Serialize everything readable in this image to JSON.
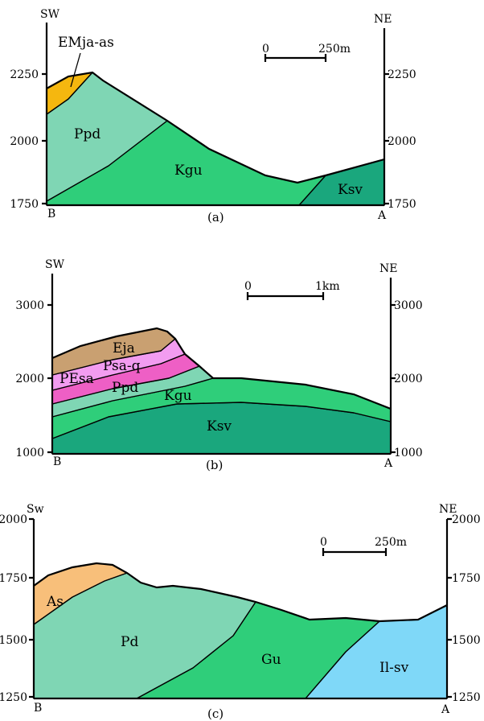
{
  "panels": [
    {
      "id": "a",
      "caption": "(a)",
      "left_dir": "SW",
      "right_dir": "NE",
      "left_end": "B",
      "right_end": "A",
      "left_ticks": [
        "2250",
        "2000",
        "1750"
      ],
      "right_ticks": [
        "2250",
        "2000",
        "1750"
      ],
      "scale": {
        "start": "0",
        "end": "250m"
      },
      "units": [
        {
          "name": "EMja-as",
          "color": "#f5b70f"
        },
        {
          "name": "Ppd",
          "color": "#7fd6b4"
        },
        {
          "name": "Kgu",
          "color": "#2fce7a"
        },
        {
          "name": "Ksv",
          "color": "#1aa77d"
        }
      ]
    },
    {
      "id": "b",
      "caption": "(b)",
      "left_dir": "SW",
      "right_dir": "NE",
      "left_end": "B",
      "right_end": "A",
      "left_ticks": [
        "3000",
        "2000",
        "1000"
      ],
      "right_ticks": [
        "3000",
        "2000",
        "1000"
      ],
      "scale": {
        "start": "0",
        "end": "1km"
      },
      "units": [
        {
          "name": "Eja",
          "color": "#c9a071"
        },
        {
          "name": "Psa-q",
          "color": "#f29cf0"
        },
        {
          "name": "PEsa",
          "color": "#ee5fc5"
        },
        {
          "name": "Ppd",
          "color": "#7fd6b4"
        },
        {
          "name": "Kgu",
          "color": "#2fce7a"
        },
        {
          "name": "Ksv",
          "color": "#1aa77d"
        }
      ]
    },
    {
      "id": "c",
      "caption": "(c)",
      "left_dir": "Sw",
      "right_dir": "NE",
      "left_end": "B",
      "right_end": "A",
      "left_ticks": [
        "2000",
        "1750",
        "1500",
        "1250"
      ],
      "right_ticks": [
        "2000",
        "1750",
        "1500",
        "1250"
      ],
      "scale": {
        "start": "0",
        "end": "250m"
      },
      "units": [
        {
          "name": "As",
          "color": "#f8bf7a"
        },
        {
          "name": "Pd",
          "color": "#7fd6b4"
        },
        {
          "name": "Gu",
          "color": "#2fce7a"
        },
        {
          "name": "Il-sv",
          "color": "#7fd8f8"
        }
      ]
    }
  ]
}
